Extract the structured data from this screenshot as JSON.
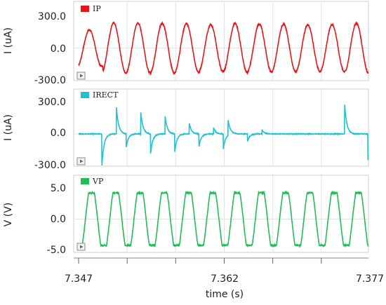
{
  "chart_data": {
    "type": "line",
    "xlabel": "time (s)",
    "xlim": [
      7.347,
      7.377
    ],
    "xticks": [
      "7.347",
      "7.362",
      "7.377"
    ],
    "grid": true,
    "panels": [
      {
        "name": "IP",
        "color": "#e8141a",
        "ylabel": "I (uA)",
        "ylim": [
          -300,
          300
        ],
        "yticks": [
          "300.0",
          "0.0",
          "-300.0"
        ],
        "waveform": {
          "shape": "sine",
          "period": 0.0025,
          "amplitude": [
            175,
            240,
            240,
            240,
            235,
            225,
            235,
            230,
            230,
            225,
            225,
            240
          ],
          "offset": 0
        }
      },
      {
        "name": "IRECT",
        "color": "#1ec3d0",
        "ylabel": "I (uA)",
        "ylim": [
          -300,
          300
        ],
        "yticks": [
          "300.0",
          "0.0",
          "-300.0"
        ],
        "pulses": [
          {
            "t": 7.3494,
            "peak": -300
          },
          {
            "t": 7.3509,
            "peak": 250
          },
          {
            "t": 7.3519,
            "peak": -130
          },
          {
            "t": 7.3534,
            "peak": 210
          },
          {
            "t": 7.3544,
            "peak": -200
          },
          {
            "t": 7.3559,
            "peak": 180
          },
          {
            "t": 7.3569,
            "peak": -170
          },
          {
            "t": 7.3584,
            "peak": 100
          },
          {
            "t": 7.3594,
            "peak": -120
          },
          {
            "t": 7.3609,
            "peak": 60
          },
          {
            "t": 7.3619,
            "peak": -150
          },
          {
            "t": 7.3624,
            "peak": 150
          },
          {
            "t": 7.3644,
            "peak": -70
          },
          {
            "t": 7.3659,
            "peak": 40
          },
          {
            "t": 7.3744,
            "peak": 290
          },
          {
            "t": 7.3768,
            "peak": -260
          }
        ]
      },
      {
        "name": "VP",
        "color": "#1fbd57",
        "ylabel": "V (V)",
        "ylim": [
          -5,
          5
        ],
        "yticks": [
          "5.0",
          "0.0",
          "-5.0"
        ],
        "waveform": {
          "shape": "clipped-sine",
          "period": 0.0025,
          "amplitude": 4.2,
          "offset": 0
        }
      }
    ]
  }
}
